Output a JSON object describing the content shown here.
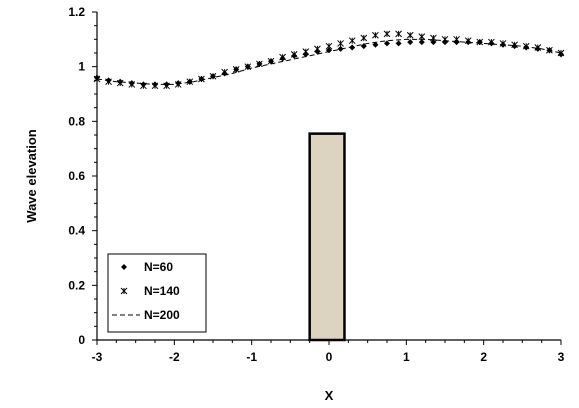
{
  "chart_data": {
    "type": "scatter",
    "xlabel": "X",
    "ylabel": "Wave elevation",
    "xlim": [
      -3,
      3
    ],
    "ylim": [
      0,
      1.2
    ],
    "x_ticks": [
      -3,
      -2,
      -1,
      0,
      1,
      2,
      3
    ],
    "y_ticks": [
      0,
      0.2,
      0.4,
      0.6,
      0.8,
      1,
      1.2
    ],
    "x_tick_labels": [
      "-3",
      "-2",
      "-1",
      "0",
      "1",
      "2",
      "3"
    ],
    "y_tick_labels": [
      "0",
      "0.2",
      "0.4",
      "0.6",
      "0.8",
      "1",
      "1.2"
    ],
    "legend_position": "bottom-left",
    "grid": false,
    "obstacle": {
      "x_start": -0.25,
      "x_end": 0.2,
      "height": 0.755,
      "fill_color": "#ddd3c1",
      "stroke_color": "#000000"
    },
    "series": [
      {
        "name": "N=60",
        "marker": "diamond",
        "x": [
          -3.0,
          -2.85,
          -2.7,
          -2.55,
          -2.4,
          -2.25,
          -2.1,
          -1.95,
          -1.8,
          -1.65,
          -1.5,
          -1.35,
          -1.2,
          -1.05,
          -0.9,
          -0.75,
          -0.6,
          -0.45,
          -0.3,
          -0.15,
          0.0,
          0.15,
          0.3,
          0.45,
          0.6,
          0.75,
          0.9,
          1.05,
          1.2,
          1.35,
          1.5,
          1.65,
          1.8,
          1.95,
          2.1,
          2.25,
          2.4,
          2.55,
          2.7,
          2.85,
          3.0
        ],
        "y": [
          0.96,
          0.95,
          0.945,
          0.94,
          0.935,
          0.935,
          0.935,
          0.94,
          0.945,
          0.955,
          0.965,
          0.975,
          0.99,
          1.0,
          1.01,
          1.02,
          1.03,
          1.04,
          1.045,
          1.055,
          1.06,
          1.065,
          1.07,
          1.075,
          1.08,
          1.085,
          1.085,
          1.09,
          1.09,
          1.09,
          1.09,
          1.09,
          1.09,
          1.09,
          1.085,
          1.08,
          1.075,
          1.07,
          1.065,
          1.06,
          1.045
        ]
      },
      {
        "name": "N=140",
        "marker": "asterisk",
        "x": [
          -3.0,
          -2.85,
          -2.7,
          -2.55,
          -2.4,
          -2.25,
          -2.1,
          -1.95,
          -1.8,
          -1.65,
          -1.5,
          -1.35,
          -1.2,
          -1.05,
          -0.9,
          -0.75,
          -0.6,
          -0.45,
          -0.3,
          -0.15,
          0.0,
          0.15,
          0.3,
          0.45,
          0.6,
          0.75,
          0.9,
          1.05,
          1.2,
          1.35,
          1.5,
          1.65,
          1.8,
          1.95,
          2.1,
          2.25,
          2.4,
          2.55,
          2.7,
          2.85,
          3.0
        ],
        "y": [
          0.955,
          0.945,
          0.94,
          0.935,
          0.93,
          0.93,
          0.93,
          0.935,
          0.945,
          0.955,
          0.965,
          0.98,
          0.99,
          1.0,
          1.01,
          1.02,
          1.035,
          1.045,
          1.055,
          1.065,
          1.075,
          1.085,
          1.095,
          1.105,
          1.115,
          1.12,
          1.12,
          1.115,
          1.11,
          1.105,
          1.1,
          1.1,
          1.095,
          1.09,
          1.09,
          1.085,
          1.08,
          1.075,
          1.07,
          1.06,
          1.05
        ]
      },
      {
        "name": "N=200",
        "marker": "dashed-line",
        "x": [
          -3.0,
          -2.75,
          -2.5,
          -2.25,
          -2.0,
          -1.75,
          -1.5,
          -1.25,
          -1.0,
          -0.75,
          -0.5,
          -0.25,
          0.0,
          0.25,
          0.5,
          0.75,
          1.0,
          1.25,
          1.5,
          1.75,
          2.0,
          2.25,
          2.5,
          2.75,
          3.0
        ],
        "y": [
          0.955,
          0.945,
          0.94,
          0.935,
          0.935,
          0.945,
          0.96,
          0.975,
          0.995,
          1.01,
          1.025,
          1.04,
          1.055,
          1.07,
          1.085,
          1.095,
          1.1,
          1.1,
          1.095,
          1.09,
          1.085,
          1.08,
          1.075,
          1.065,
          1.05
        ]
      }
    ]
  }
}
